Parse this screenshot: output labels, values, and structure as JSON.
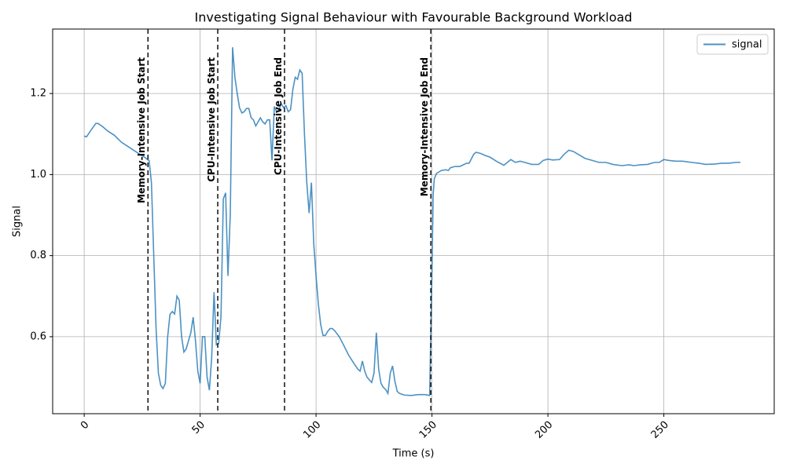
{
  "chart_data": {
    "type": "line",
    "title": "Investigating Signal Behaviour with Favourable Background Workload",
    "x_label": "Time (s)",
    "y_label": "Signal",
    "x": [
      0,
      1,
      3,
      5,
      6,
      8,
      10,
      13,
      16,
      20,
      24,
      26,
      27.5,
      28,
      29,
      30,
      31,
      32,
      33,
      34,
      35,
      36,
      37,
      38,
      39,
      40,
      41,
      42,
      43,
      44,
      46,
      47,
      48,
      49,
      50,
      51,
      52,
      53,
      54,
      55,
      56,
      57,
      58,
      59,
      60,
      61,
      62,
      63,
      64,
      65,
      66,
      67,
      68,
      69,
      70,
      71,
      72,
      73,
      74,
      75,
      76,
      77,
      78,
      79,
      80,
      81,
      82,
      83,
      84,
      85,
      86,
      87,
      88,
      89,
      90,
      91,
      92,
      93,
      94,
      95,
      96,
      97,
      98,
      99,
      100,
      101,
      102,
      103,
      104,
      105,
      106,
      107,
      108,
      110,
      112,
      114,
      116,
      118,
      119,
      120,
      121,
      122,
      124,
      125,
      126,
      127,
      128,
      129,
      130,
      131,
      132,
      133,
      134,
      135,
      136,
      138,
      141,
      144,
      147,
      149,
      150,
      150.5,
      151,
      152,
      154,
      156,
      157,
      158,
      160,
      162,
      165,
      166,
      168,
      169,
      171,
      173,
      175,
      178,
      181,
      184,
      186,
      188,
      190,
      193,
      196,
      198,
      200,
      202,
      205,
      207,
      209,
      211,
      213,
      216,
      219,
      222,
      225,
      228,
      232,
      235,
      237,
      240,
      243,
      246,
      248,
      250,
      252,
      255,
      258,
      262,
      265,
      268,
      272,
      275,
      278,
      281,
      283
    ],
    "series": [
      {
        "name": "signal",
        "color": "#1f77b4",
        "values": [
          1.095,
          1.093,
          1.11,
          1.126,
          1.126,
          1.118,
          1.108,
          1.097,
          1.08,
          1.065,
          1.05,
          1.043,
          1.036,
          1.035,
          0.98,
          0.8,
          0.62,
          0.51,
          0.48,
          0.472,
          0.485,
          0.6,
          0.655,
          0.662,
          0.656,
          0.7,
          0.69,
          0.6,
          0.562,
          0.57,
          0.61,
          0.648,
          0.59,
          0.515,
          0.485,
          0.6,
          0.6,
          0.5,
          0.468,
          0.55,
          0.71,
          0.58,
          0.583,
          0.65,
          0.94,
          0.955,
          0.75,
          0.9,
          1.314,
          1.24,
          1.2,
          1.165,
          1.152,
          1.155,
          1.163,
          1.163,
          1.14,
          1.135,
          1.12,
          1.13,
          1.14,
          1.13,
          1.125,
          1.135,
          1.135,
          1.035,
          1.168,
          1.155,
          1.16,
          1.175,
          1.165,
          1.17,
          1.155,
          1.16,
          1.21,
          1.24,
          1.235,
          1.258,
          1.25,
          1.1,
          0.98,
          0.905,
          0.98,
          0.83,
          0.75,
          0.68,
          0.63,
          0.603,
          0.603,
          0.613,
          0.62,
          0.62,
          0.615,
          0.6,
          0.578,
          0.555,
          0.537,
          0.52,
          0.515,
          0.54,
          0.515,
          0.5,
          0.487,
          0.51,
          0.61,
          0.52,
          0.485,
          0.475,
          0.47,
          0.46,
          0.51,
          0.528,
          0.49,
          0.465,
          0.46,
          0.456,
          0.455,
          0.457,
          0.457,
          0.455,
          0.76,
          0.95,
          0.99,
          1.003,
          1.01,
          1.012,
          1.01,
          1.017,
          1.02,
          1.02,
          1.028,
          1.028,
          1.05,
          1.055,
          1.052,
          1.047,
          1.043,
          1.032,
          1.023,
          1.037,
          1.03,
          1.033,
          1.03,
          1.025,
          1.025,
          1.035,
          1.038,
          1.036,
          1.037,
          1.05,
          1.06,
          1.057,
          1.05,
          1.04,
          1.035,
          1.03,
          1.03,
          1.025,
          1.022,
          1.024,
          1.022,
          1.024,
          1.025,
          1.03,
          1.03,
          1.037,
          1.035,
          1.033,
          1.033,
          1.03,
          1.028,
          1.025,
          1.026,
          1.028,
          1.028,
          1.03,
          1.03
        ]
      }
    ],
    "vlines": [
      {
        "x": 27.5,
        "label": "Memory-Intensive Job Start"
      },
      {
        "x": 57.6,
        "label": "CPU-Intensive Job Start"
      },
      {
        "x": 86.4,
        "label": "CPU-Intensive Job End"
      },
      {
        "x": 149.5,
        "label": "Memory-Intensive Job End"
      }
    ],
    "xlim": [
      -13.6,
      297.6
    ],
    "ylim": [
      0.41,
      1.359
    ],
    "xticks": [
      0,
      50,
      100,
      150,
      200,
      250
    ],
    "yticks": [
      0.6,
      0.8,
      {
        "value": 1,
        "label": "1.0"
      },
      1.2
    ],
    "grid": true,
    "legend": "upper right"
  }
}
